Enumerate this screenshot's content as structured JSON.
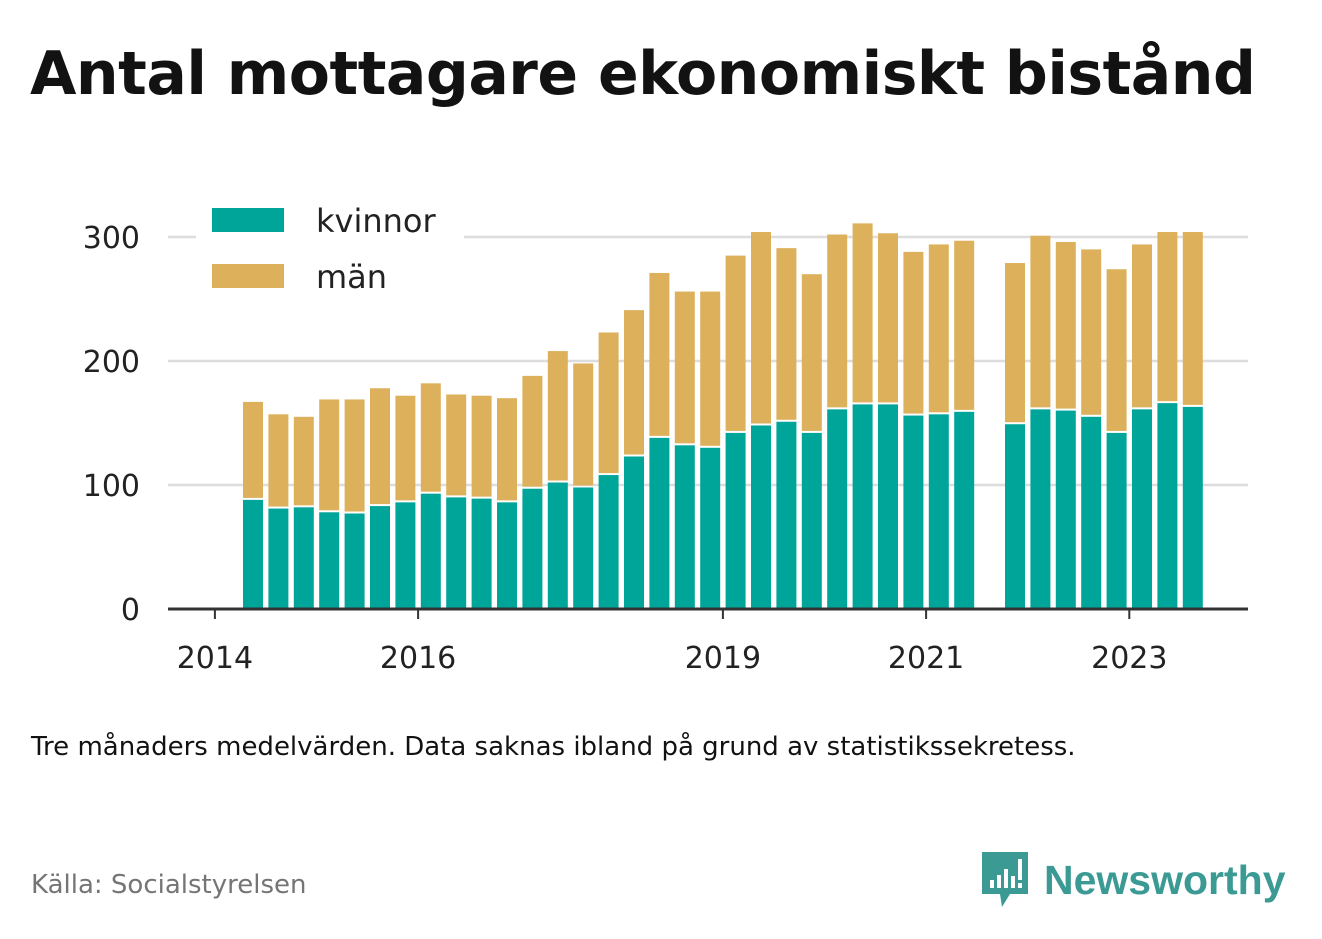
{
  "title": "Antal mottagare ekonomiskt bistånd",
  "note": "Tre månaders medelvärden. Data saknas ibland på grund av statistikssekretess.",
  "source": "Källa: Socialstyrelsen",
  "brand": {
    "name": "Newsworthy",
    "icon": "newsworthy-logo-icon",
    "color": "#3b9b94"
  },
  "colors": {
    "kvinnor": "#00a599",
    "man": "#ddb05b",
    "grid": "#dddddd",
    "axis": "#333333"
  },
  "chart_data": {
    "type": "bar",
    "stacked": true,
    "x": [
      "2014-Q2",
      "2014-Q3",
      "2014-Q4",
      "2015-Q1",
      "2015-Q2",
      "2015-Q3",
      "2015-Q4",
      "2016-Q1",
      "2016-Q2",
      "2016-Q3",
      "2016-Q4",
      "2017-Q1",
      "2017-Q2",
      "2017-Q3",
      "2017-Q4",
      "2018-Q1",
      "2018-Q2",
      "2018-Q3",
      "2018-Q4",
      "2019-Q1",
      "2019-Q2",
      "2019-Q3",
      "2019-Q4",
      "2020-Q1",
      "2020-Q2",
      "2020-Q3",
      "2020-Q4",
      "2021-Q1",
      "2021-Q2",
      "2021-Q3",
      "2021-Q4",
      "2022-Q1",
      "2022-Q2",
      "2022-Q3",
      "2022-Q4",
      "2023-Q1",
      "2023-Q2",
      "2023-Q3",
      "2023-Q4"
    ],
    "series": [
      {
        "name": "kvinnor",
        "color": "#00a599",
        "values": [
          88,
          81,
          82,
          78,
          77,
          83,
          86,
          93,
          90,
          89,
          86,
          97,
          102,
          98,
          108,
          123,
          138,
          132,
          130,
          142,
          148,
          151,
          142,
          161,
          165,
          165,
          156,
          157,
          159,
          null,
          149,
          161,
          160,
          155,
          142,
          161,
          166,
          163,
          null
        ]
      },
      {
        "name": "män",
        "color": "#ddb05b",
        "values": [
          79,
          76,
          73,
          91,
          92,
          95,
          86,
          89,
          83,
          83,
          84,
          91,
          106,
          100,
          115,
          118,
          133,
          124,
          126,
          143,
          156,
          140,
          128,
          141,
          146,
          138,
          132,
          137,
          138,
          null,
          130,
          140,
          136,
          135,
          132,
          133,
          138,
          141,
          null
        ]
      }
    ],
    "x_ticks": [
      "2014",
      "2016",
      "2019",
      "2021",
      "2023"
    ],
    "ylim": [
      0,
      330
    ],
    "y_ticks": [
      0,
      100,
      200,
      300
    ],
    "grid": true,
    "legend": {
      "placement": "top-left",
      "entries": [
        "kvinnor",
        "män"
      ]
    },
    "xlabel": "",
    "ylabel": ""
  }
}
